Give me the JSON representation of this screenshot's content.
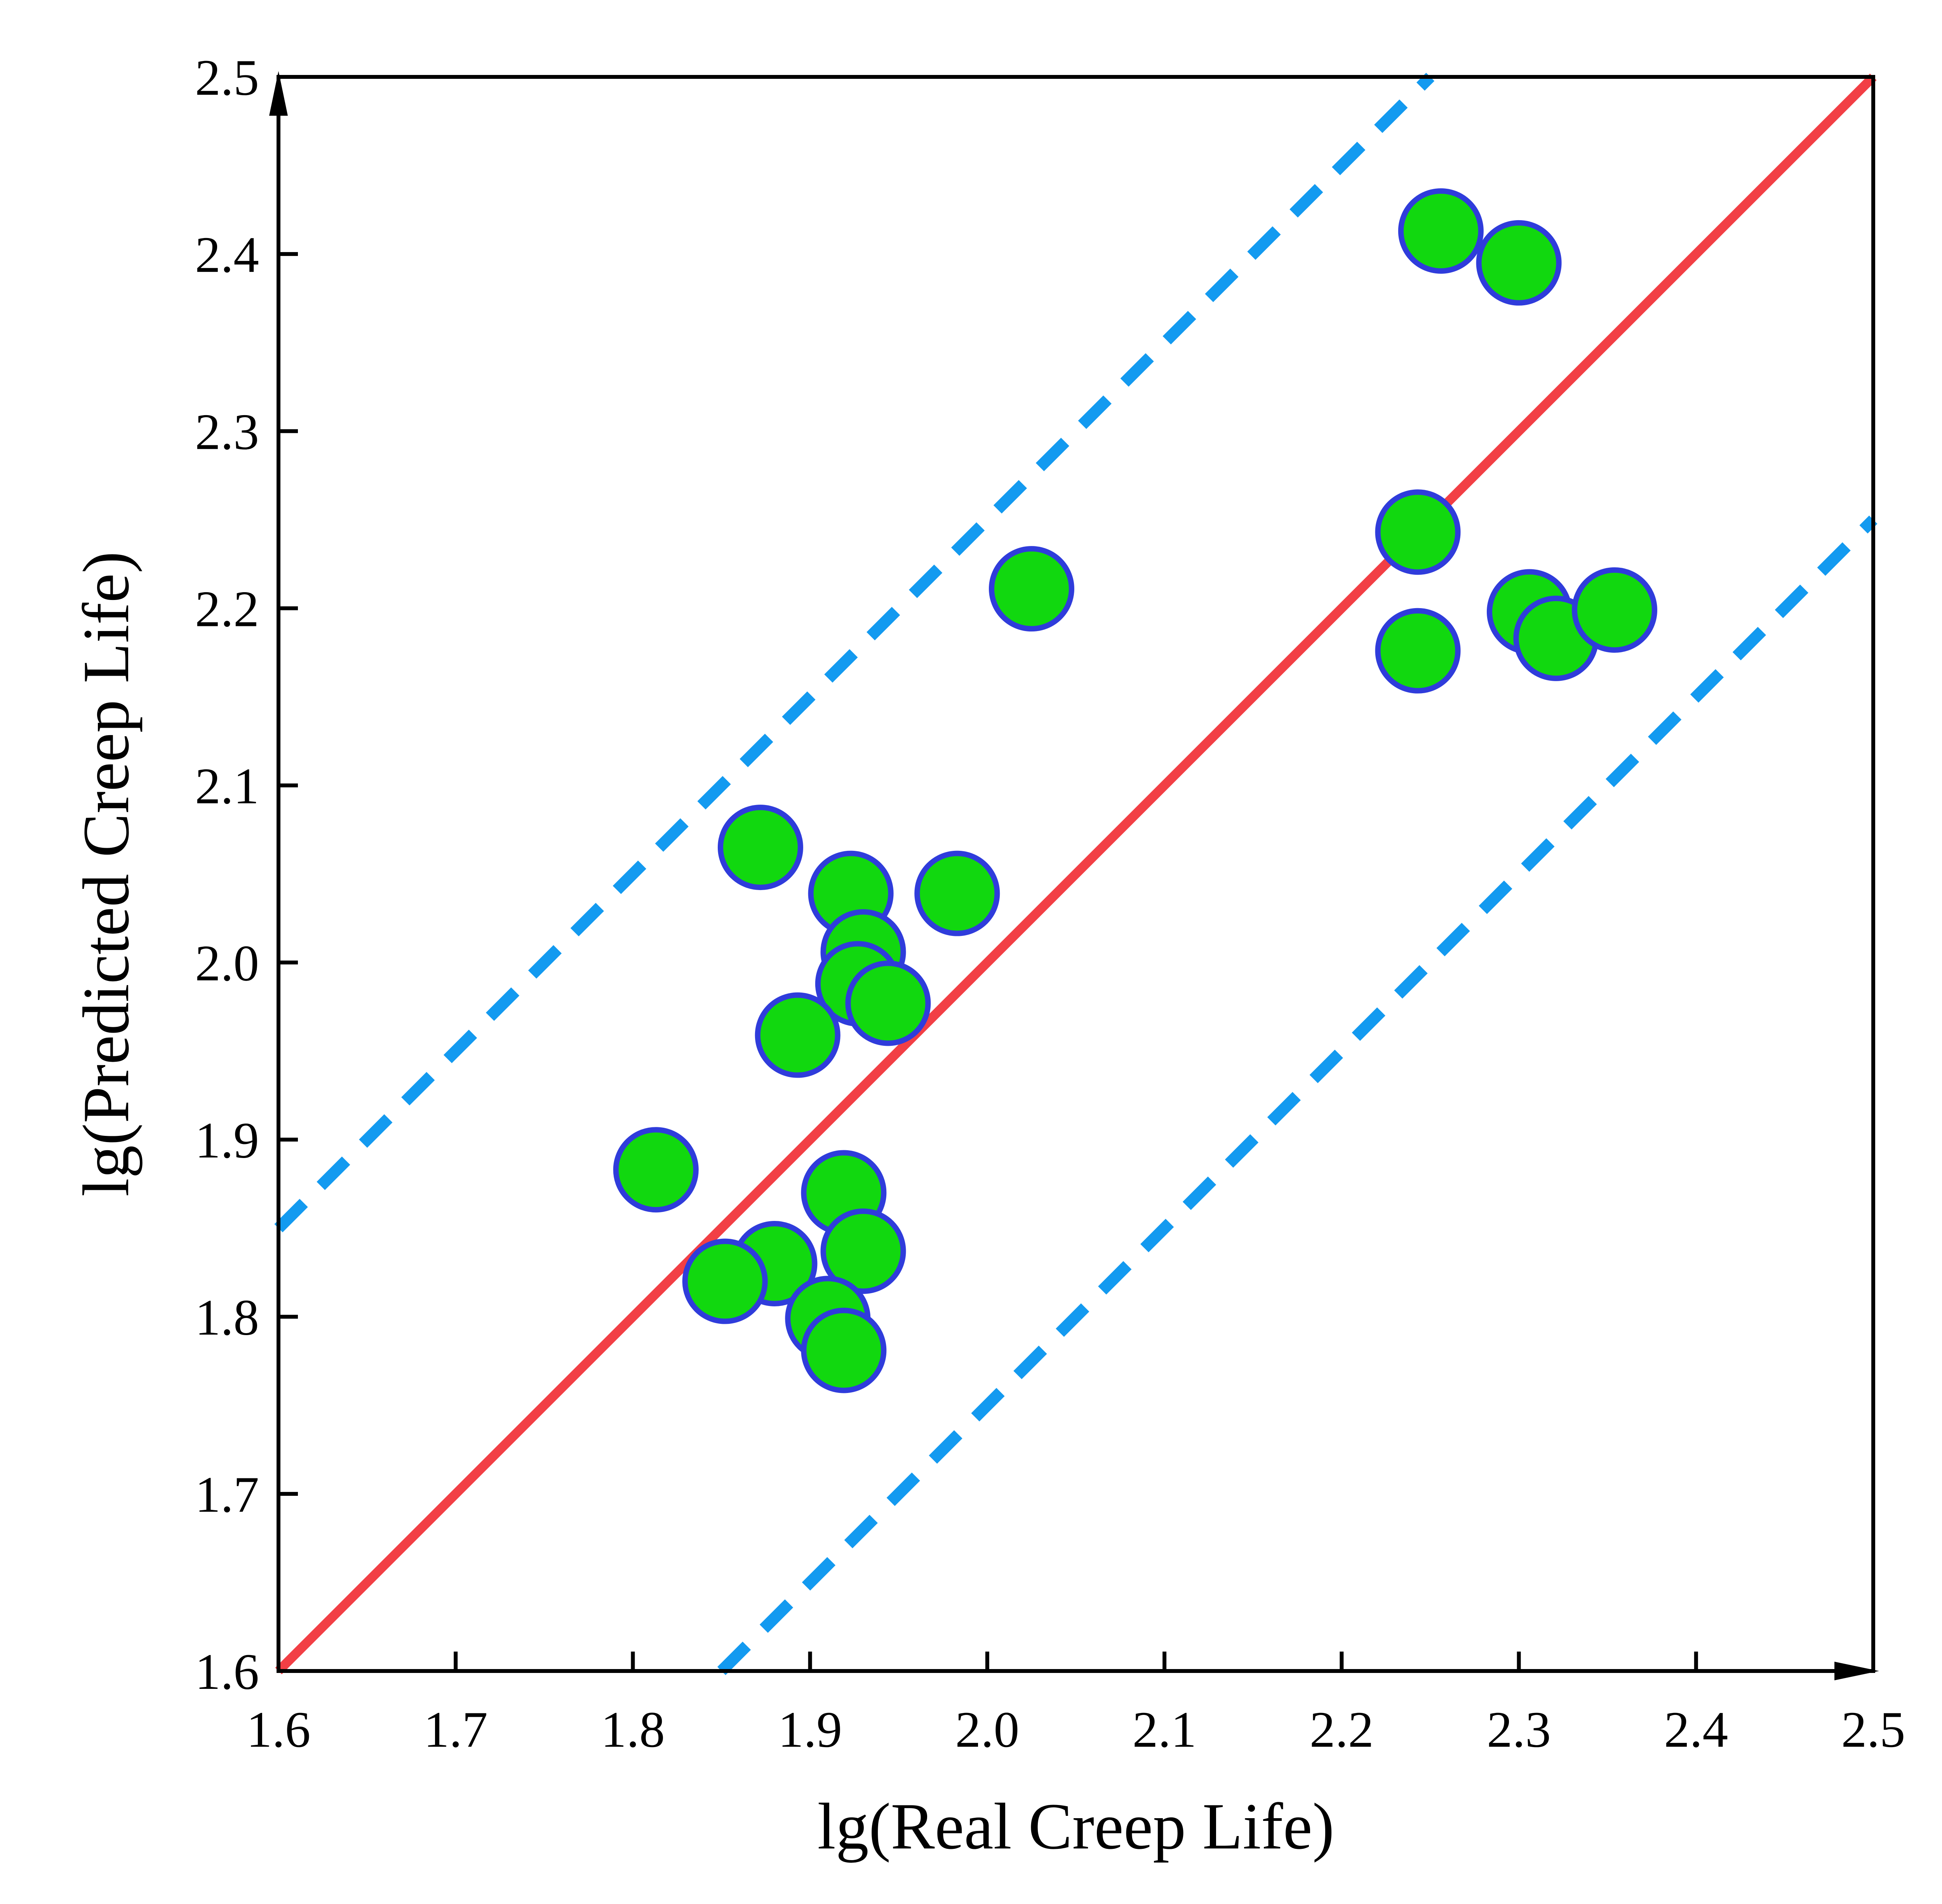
{
  "chart_data": {
    "type": "scatter",
    "title": "",
    "xlabel": "lg(Real Creep Life)",
    "ylabel": "lg(Predicted Creep Life)",
    "xlim": [
      1.6,
      2.5
    ],
    "ylim": [
      1.6,
      2.5
    ],
    "x_ticks": [
      "1.6",
      "1.7",
      "1.8",
      "1.9",
      "2.0",
      "2.1",
      "2.2",
      "2.3",
      "2.4",
      "2.5"
    ],
    "y_ticks": [
      "1.6",
      "1.7",
      "1.8",
      "1.9",
      "2.0",
      "2.1",
      "2.2",
      "2.3",
      "2.4",
      "2.5"
    ],
    "grid": false,
    "legend": "none",
    "points": [
      {
        "x": 2.256,
        "y": 2.413
      },
      {
        "x": 2.3,
        "y": 2.395
      },
      {
        "x": 2.243,
        "y": 2.243
      },
      {
        "x": 2.243,
        "y": 2.176
      },
      {
        "x": 2.306,
        "y": 2.198
      },
      {
        "x": 2.321,
        "y": 2.183
      },
      {
        "x": 2.354,
        "y": 2.199
      },
      {
        "x": 2.025,
        "y": 2.211
      },
      {
        "x": 1.872,
        "y": 2.065
      },
      {
        "x": 1.923,
        "y": 2.039
      },
      {
        "x": 1.983,
        "y": 2.039
      },
      {
        "x": 1.93,
        "y": 2.006
      },
      {
        "x": 1.927,
        "y": 1.988
      },
      {
        "x": 1.944,
        "y": 1.977
      },
      {
        "x": 1.893,
        "y": 1.959
      },
      {
        "x": 1.813,
        "y": 1.883
      },
      {
        "x": 1.919,
        "y": 1.87
      },
      {
        "x": 1.93,
        "y": 1.837
      },
      {
        "x": 1.88,
        "y": 1.83
      },
      {
        "x": 1.852,
        "y": 1.82
      },
      {
        "x": 1.91,
        "y": 1.799
      },
      {
        "x": 1.919,
        "y": 1.781
      }
    ],
    "reference_lines": [
      {
        "kind": "ideal",
        "equation": "y = x",
        "color": "#f23f45",
        "style": "solid"
      },
      {
        "kind": "upper-band",
        "equation": "y = x + 0.25",
        "color": "#139af0",
        "style": "dashed"
      },
      {
        "kind": "lower-band",
        "equation": "y = x - 0.25",
        "color": "#139af0",
        "style": "dashed"
      }
    ],
    "marker": {
      "fill": "#11d80f",
      "stroke": "#2f3cdb"
    }
  }
}
